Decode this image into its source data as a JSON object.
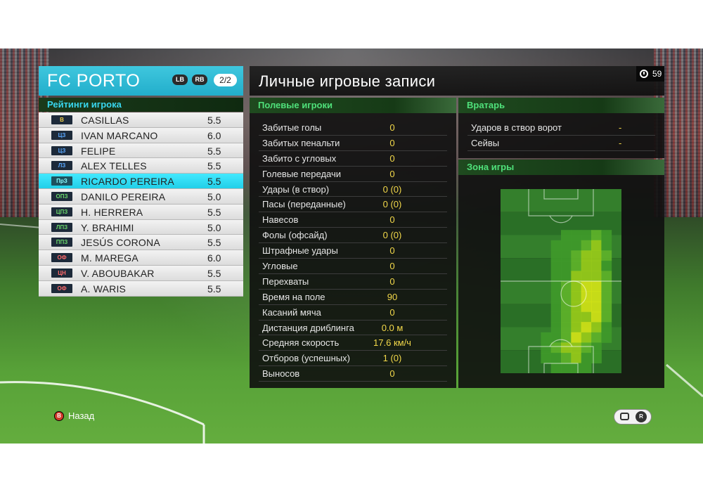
{
  "team": {
    "name": "FC PORTO",
    "lb_label": "LB",
    "rb_label": "RB",
    "page": "2/2"
  },
  "ratings_header": "Рейтинги игрока",
  "players": [
    {
      "pos": "В",
      "name": "CASILLAS",
      "rating": "5.5"
    },
    {
      "pos": "ЦЗ",
      "name": "IVAN MARCANO",
      "rating": "6.0"
    },
    {
      "pos": "ЦЗ",
      "name": "FELIPE",
      "rating": "5.5"
    },
    {
      "pos": "ЛЗ",
      "name": "ALEX TELLES",
      "rating": "5.5"
    },
    {
      "pos": "ПрЗ",
      "name": "RICARDO PEREIRA",
      "rating": "5.5"
    },
    {
      "pos": "ОПЗ",
      "name": "DANILO PEREIRA",
      "rating": "5.0"
    },
    {
      "pos": "ЦПЗ",
      "name": "H. HERRERA",
      "rating": "5.5"
    },
    {
      "pos": "ЛПЗ",
      "name": "Y. BRAHIMI",
      "rating": "5.0"
    },
    {
      "pos": "ППЗ",
      "name": "JESÚS CORONA",
      "rating": "5.5"
    },
    {
      "pos": "ОФ",
      "name": "M. MAREGA",
      "rating": "6.0"
    },
    {
      "pos": "ЦН",
      "name": "V. ABOUBAKAR",
      "rating": "5.5"
    },
    {
      "pos": "ОФ",
      "name": "A. WARIS",
      "rating": "5.5"
    }
  ],
  "title": "Личные игровые записи",
  "timer": "59",
  "outfield": {
    "header": "Полевые игроки",
    "stats": [
      {
        "label": "Забитые голы",
        "value": "0"
      },
      {
        "label": "Забитых пенальти",
        "value": "0"
      },
      {
        "label": "Забито с угловых",
        "value": "0"
      },
      {
        "label": "Голевые передачи",
        "value": "0"
      },
      {
        "label": "Удары (в створ)",
        "value": "0 (0)"
      },
      {
        "label": "Пасы (переданные)",
        "value": "0 (0)"
      },
      {
        "label": "Навесов",
        "value": "0"
      },
      {
        "label": "Фолы (офсайд)",
        "value": "0 (0)"
      },
      {
        "label": "Штрафные удары",
        "value": "0"
      },
      {
        "label": "Угловые",
        "value": "0"
      },
      {
        "label": "Перехваты",
        "value": "0"
      },
      {
        "label": "Время на поле",
        "value": "90"
      },
      {
        "label": "Касаний мяча",
        "value": "0"
      },
      {
        "label": "Дистанция дриблинга",
        "value": "0.0 м"
      },
      {
        "label": "Средняя скорость",
        "value": "17.6 км/ч"
      },
      {
        "label": "Отборов (успешных)",
        "value": "1 (0)"
      },
      {
        "label": "Выносов",
        "value": "0"
      }
    ]
  },
  "keeper": {
    "header": "Вратарь",
    "stats": [
      {
        "label": "Ударов в створ ворот",
        "value": "-"
      },
      {
        "label": "Сейвы",
        "value": "-"
      }
    ]
  },
  "zone": {
    "header": "Зона игры",
    "heatmap_grid": [
      [
        0,
        0,
        0,
        0,
        0,
        0,
        0,
        0,
        0,
        0,
        0,
        0
      ],
      [
        0,
        0,
        0,
        0,
        0,
        0,
        0,
        0,
        0,
        0,
        0,
        0
      ],
      [
        0,
        0,
        0,
        0,
        0,
        0,
        0,
        0,
        0,
        0,
        0,
        0
      ],
      [
        0,
        0,
        0,
        0,
        0,
        0,
        0,
        0,
        0,
        0,
        0,
        0
      ],
      [
        0,
        0,
        0,
        0,
        0,
        0,
        1,
        1,
        1,
        2,
        1,
        0
      ],
      [
        0,
        0,
        0,
        0,
        0,
        1,
        1,
        1,
        2,
        3,
        1,
        0
      ],
      [
        0,
        0,
        0,
        0,
        0,
        1,
        1,
        2,
        3,
        3,
        2,
        0
      ],
      [
        0,
        0,
        0,
        0,
        0,
        1,
        1,
        2,
        3,
        3,
        1,
        0
      ],
      [
        0,
        0,
        0,
        0,
        0,
        1,
        1,
        3,
        3,
        3,
        2,
        0
      ],
      [
        0,
        0,
        0,
        0,
        0,
        1,
        2,
        3,
        4,
        4,
        2,
        0
      ],
      [
        0,
        0,
        0,
        0,
        0,
        1,
        2,
        3,
        4,
        4,
        2,
        0
      ],
      [
        0,
        0,
        0,
        0,
        0,
        1,
        2,
        3,
        4,
        4,
        2,
        0
      ],
      [
        0,
        0,
        0,
        0,
        0,
        1,
        2,
        3,
        3,
        4,
        2,
        0
      ],
      [
        0,
        0,
        0,
        0,
        0,
        1,
        2,
        3,
        4,
        3,
        1,
        0
      ],
      [
        0,
        0,
        0,
        0,
        1,
        1,
        2,
        4,
        3,
        2,
        1,
        0
      ],
      [
        0,
        0,
        0,
        0,
        1,
        2,
        3,
        3,
        2,
        1,
        0,
        0
      ],
      [
        0,
        0,
        0,
        0,
        1,
        1,
        2,
        3,
        1,
        1,
        0,
        0
      ],
      [
        0,
        0,
        0,
        0,
        0,
        1,
        1,
        1,
        1,
        0,
        0,
        0
      ]
    ],
    "colors": [
      "#2f7a2a",
      "#3f9a2a",
      "#5fb42a",
      "#9acc1a",
      "#d6e616"
    ]
  },
  "footer": {
    "back_button": "B",
    "back_label": "Назад",
    "rs_label": "R"
  }
}
